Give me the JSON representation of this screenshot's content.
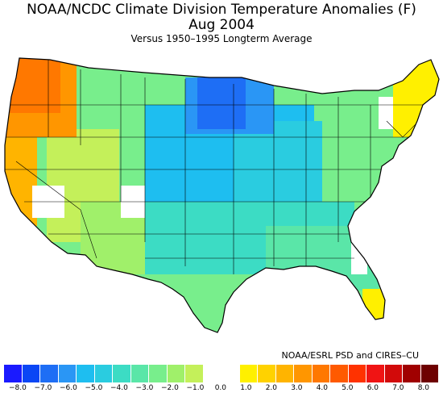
{
  "title": "NOAA/NCDC Climate Division Temperature Anomalies (F)",
  "date": "Aug 2004",
  "subtitle": "Versus 1950–1995 Longterm Average",
  "credit": "NOAA/ESRL PSD and CIRES–CU",
  "legend": {
    "colors": [
      "#1a1aff",
      "#0a46f5",
      "#1e6ef5",
      "#2a96f5",
      "#1ebef0",
      "#2acce0",
      "#3cdcc4",
      "#5ae6a8",
      "#78ee8c",
      "#a0f06a",
      "#c4f05a",
      "#ffffff",
      "#ffffff",
      "#fff000",
      "#ffd200",
      "#ffb400",
      "#ff9600",
      "#ff7800",
      "#ff5a00",
      "#ff3200",
      "#f01414",
      "#d20a0a",
      "#a00000",
      "#6e0000"
    ],
    "tick_labels": [
      "−8.0",
      "−7.0",
      "−6.0",
      "−5.0",
      "−4.0",
      "−3.0",
      "−2.0",
      "−1.0",
      "0.0",
      "1.0",
      "2.0",
      "3.0",
      "4.0",
      "5.0",
      "6.0",
      "7.0",
      "8.0"
    ]
  },
  "map_colors": {
    "pacific_northwest": "#ff7800",
    "northwest_coast": "#ff9600",
    "california_coast": "#ffb400",
    "great_basin": "#c4f05a",
    "southwest": "#a0f06a",
    "northern_rockies": "#78ee8c",
    "northern_plains": "#1e6ef5",
    "upper_midwest": "#2a96f5",
    "central_plains": "#1ebef0",
    "midwest": "#2acce0",
    "south_central": "#3cdcc4",
    "southeast": "#5ae6a8",
    "east_coast": "#78ee8c",
    "new_england": "#fff000",
    "florida": "#fff000",
    "no_anomaly": "#ffffff"
  }
}
